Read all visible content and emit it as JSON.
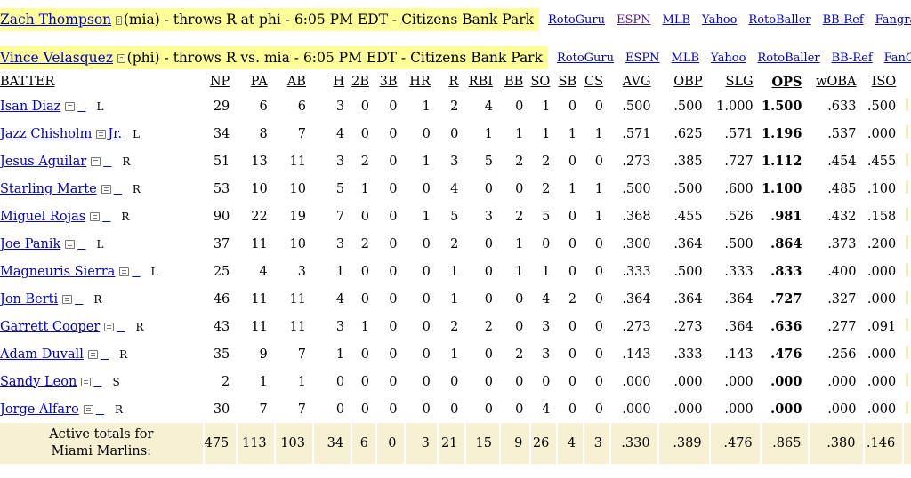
{
  "matchups": [
    {
      "pitcher": "Zach Thompson",
      "details": "(mia) - throws R at phi - 6:05 PM EDT - Citizens Bank Park",
      "links": [
        "RotoGuru",
        "ESPN",
        "MLB",
        "Yahoo",
        "RotoBaller",
        "BB-Ref",
        "Fangraphs"
      ]
    },
    {
      "pitcher": "Vince Velasquez",
      "details": "(phi) - throws R vs. mia - 6:05 PM EDT - Citizens Bank Park",
      "links": [
        "RotoGuru",
        "ESPN",
        "MLB",
        "Yahoo",
        "RotoBaller",
        "BB-Ref",
        "FanGraph"
      ]
    }
  ],
  "columns": [
    "BATTER",
    "NP",
    "PA",
    "AB",
    "H",
    "2B",
    "3B",
    "HR",
    "R",
    "RBI",
    "BB",
    "SO",
    "SB",
    "CS",
    "AVG",
    "OBP",
    "SLG",
    "OPS",
    "wOBA",
    "ISO"
  ],
  "rows": [
    {
      "name": "Isan Diaz",
      "suffix": "",
      "hand": "L",
      "stats": [
        "29",
        "6",
        "6",
        "3",
        "0",
        "0",
        "1",
        "2",
        "4",
        "0",
        "1",
        "0",
        "0",
        ".500",
        ".500",
        "1.000",
        "1.500",
        ".633",
        ".500"
      ]
    },
    {
      "name": "Jazz Chisholm",
      "suffix": "Jr.",
      "hand": "L",
      "stats": [
        "34",
        "8",
        "7",
        "4",
        "0",
        "0",
        "0",
        "0",
        "1",
        "1",
        "1",
        "1",
        "1",
        ".571",
        ".625",
        ".571",
        "1.196",
        ".537",
        ".000"
      ]
    },
    {
      "name": "Jesus Aguilar",
      "suffix": "",
      "hand": "R",
      "stats": [
        "51",
        "13",
        "11",
        "3",
        "2",
        "0",
        "1",
        "3",
        "5",
        "2",
        "2",
        "0",
        "0",
        ".273",
        ".385",
        ".727",
        "1.112",
        ".454",
        ".455"
      ]
    },
    {
      "name": "Starling Marte",
      "suffix": "",
      "hand": "R",
      "stats": [
        "53",
        "10",
        "10",
        "5",
        "1",
        "0",
        "0",
        "4",
        "0",
        "0",
        "2",
        "1",
        "1",
        ".500",
        ".500",
        ".600",
        "1.100",
        ".485",
        ".100"
      ]
    },
    {
      "name": "Miguel Rojas",
      "suffix": "",
      "hand": "R",
      "stats": [
        "90",
        "22",
        "19",
        "7",
        "0",
        "0",
        "1",
        "5",
        "3",
        "2",
        "5",
        "0",
        "1",
        ".368",
        ".455",
        ".526",
        ".981",
        ".432",
        ".158"
      ]
    },
    {
      "name": "Joe Panik",
      "suffix": "",
      "hand": "L",
      "stats": [
        "37",
        "11",
        "10",
        "3",
        "2",
        "0",
        "0",
        "2",
        "0",
        "1",
        "0",
        "0",
        "0",
        ".300",
        ".364",
        ".500",
        ".864",
        ".373",
        ".200"
      ]
    },
    {
      "name": "Magneuris Sierra",
      "suffix": "",
      "hand": "L",
      "stats": [
        "25",
        "4",
        "3",
        "1",
        "0",
        "0",
        "0",
        "1",
        "0",
        "1",
        "1",
        "0",
        "0",
        ".333",
        ".500",
        ".333",
        ".833",
        ".400",
        ".000"
      ]
    },
    {
      "name": "Jon Berti",
      "suffix": "",
      "hand": "R",
      "stats": [
        "46",
        "11",
        "11",
        "4",
        "0",
        "0",
        "0",
        "1",
        "0",
        "0",
        "4",
        "2",
        "0",
        ".364",
        ".364",
        ".364",
        ".727",
        ".327",
        ".000"
      ]
    },
    {
      "name": "Garrett Cooper",
      "suffix": "",
      "hand": "R",
      "stats": [
        "43",
        "11",
        "11",
        "3",
        "1",
        "0",
        "0",
        "2",
        "2",
        "0",
        "3",
        "0",
        "0",
        ".273",
        ".273",
        ".364",
        ".636",
        ".277",
        ".091"
      ]
    },
    {
      "name": "Adam Duvall",
      "suffix": "",
      "hand": "R",
      "stats": [
        "35",
        "9",
        "7",
        "1",
        "0",
        "0",
        "0",
        "1",
        "0",
        "2",
        "3",
        "0",
        "0",
        ".143",
        ".333",
        ".143",
        ".476",
        ".256",
        ".000"
      ]
    },
    {
      "name": "Sandy Leon",
      "suffix": "",
      "hand": "S",
      "stats": [
        "2",
        "1",
        "1",
        "0",
        "0",
        "0",
        "0",
        "0",
        "0",
        "0",
        "0",
        "0",
        "0",
        ".000",
        ".000",
        ".000",
        ".000",
        ".000",
        ".000"
      ]
    },
    {
      "name": "Jorge Alfaro",
      "suffix": "",
      "hand": "R",
      "stats": [
        "30",
        "7",
        "7",
        "0",
        "0",
        "0",
        "0",
        "0",
        "0",
        "0",
        "4",
        "0",
        "0",
        ".000",
        ".000",
        ".000",
        ".000",
        ".000",
        ".000"
      ]
    }
  ],
  "totals": {
    "label_line1": "Active totals for",
    "label_line2": "Miami Marlins:",
    "stats": [
      "475",
      "113",
      "103",
      "34",
      "6",
      "0",
      "3",
      "21",
      "15",
      "9",
      "26",
      "4",
      "3",
      ".330",
      ".389",
      ".476",
      ".865",
      ".380",
      ".146"
    ]
  }
}
